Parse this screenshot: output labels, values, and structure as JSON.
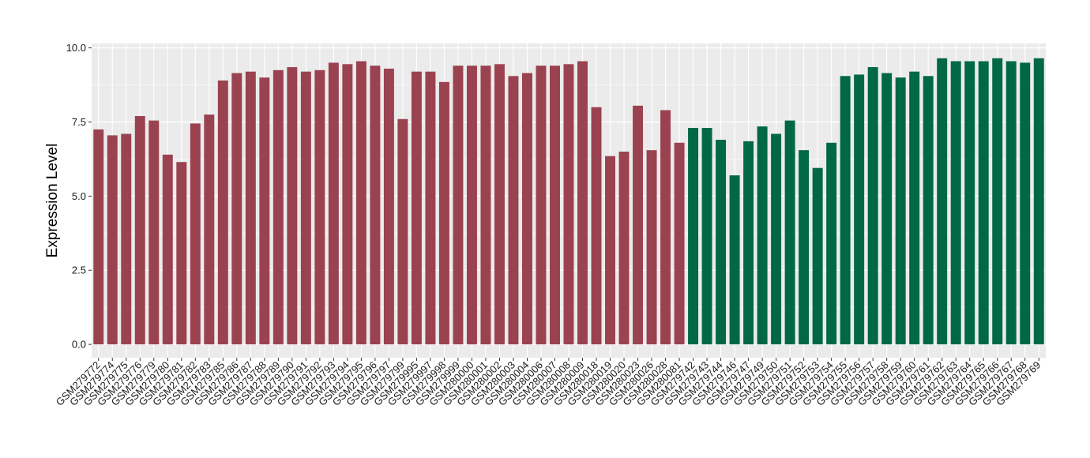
{
  "chart_data": {
    "type": "bar",
    "title": "",
    "xlabel": "",
    "ylabel": "Expression Level",
    "ylim": [
      -0.45,
      10.15
    ],
    "yticks": [
      "0.0",
      "2.5",
      "5.0",
      "7.5",
      "10.0"
    ],
    "ytick_values": [
      0,
      2.5,
      5,
      7.5,
      10
    ],
    "grid": true,
    "legend": "none",
    "colors": {
      "group1": "#9b4250",
      "group2": "#006845",
      "panel": "#ebebeb",
      "grid": "#ffffff"
    },
    "categories": [
      "GSM279772",
      "GSM279774",
      "GSM279775",
      "GSM279776",
      "GSM279779",
      "GSM279780",
      "GSM279781",
      "GSM279782",
      "GSM279783",
      "GSM279785",
      "GSM279786",
      "GSM279787",
      "GSM279788",
      "GSM279789",
      "GSM279790",
      "GSM279791",
      "GSM279792",
      "GSM279793",
      "GSM279794",
      "GSM279795",
      "GSM279796",
      "GSM279797",
      "GSM279799",
      "GSM279995",
      "GSM279997",
      "GSM279998",
      "GSM279999",
      "GSM280000",
      "GSM280001",
      "GSM280002",
      "GSM280003",
      "GSM280004",
      "GSM280006",
      "GSM280007",
      "GSM280008",
      "GSM280009",
      "GSM280018",
      "GSM280019",
      "GSM280020",
      "GSM280023",
      "GSM280026",
      "GSM280028",
      "GSM280081",
      "GSM279742",
      "GSM279743",
      "GSM279744",
      "GSM279746",
      "GSM279747",
      "GSM279749",
      "GSM279750",
      "GSM279751",
      "GSM279752",
      "GSM279753",
      "GSM279754",
      "GSM279755",
      "GSM279756",
      "GSM279757",
      "GSM279758",
      "GSM279759",
      "GSM279760",
      "GSM279761",
      "GSM279762",
      "GSM279763",
      "GSM279764",
      "GSM279765",
      "GSM279766",
      "GSM279767",
      "GSM279768",
      "GSM279769"
    ],
    "values": [
      7.25,
      7.05,
      7.1,
      7.7,
      7.55,
      6.4,
      6.15,
      7.45,
      7.75,
      8.9,
      9.15,
      9.2,
      9.0,
      9.25,
      9.35,
      9.2,
      9.25,
      9.5,
      9.45,
      9.55,
      9.4,
      9.3,
      7.6,
      9.2,
      9.2,
      8.85,
      9.4,
      9.4,
      9.4,
      9.45,
      9.05,
      9.15,
      9.4,
      9.4,
      9.45,
      9.55,
      8.0,
      6.35,
      6.5,
      8.05,
      6.55,
      7.9,
      6.8,
      7.3,
      7.3,
      6.9,
      5.7,
      6.85,
      7.35,
      7.1,
      7.55,
      6.55,
      5.95,
      6.8,
      9.05,
      9.1,
      9.35,
      9.15,
      9.0,
      9.2,
      9.05,
      9.65,
      9.55,
      9.55,
      9.55,
      9.65,
      9.55,
      9.5,
      9.65
    ],
    "groups": [
      1,
      1,
      1,
      1,
      1,
      1,
      1,
      1,
      1,
      1,
      1,
      1,
      1,
      1,
      1,
      1,
      1,
      1,
      1,
      1,
      1,
      1,
      1,
      1,
      1,
      1,
      1,
      1,
      1,
      1,
      1,
      1,
      1,
      1,
      1,
      1,
      1,
      1,
      1,
      1,
      1,
      1,
      1,
      2,
      2,
      2,
      2,
      2,
      2,
      2,
      2,
      2,
      2,
      2,
      2,
      2,
      2,
      2,
      2,
      2,
      2,
      2,
      2,
      2,
      2,
      2,
      2,
      2,
      2
    ]
  }
}
